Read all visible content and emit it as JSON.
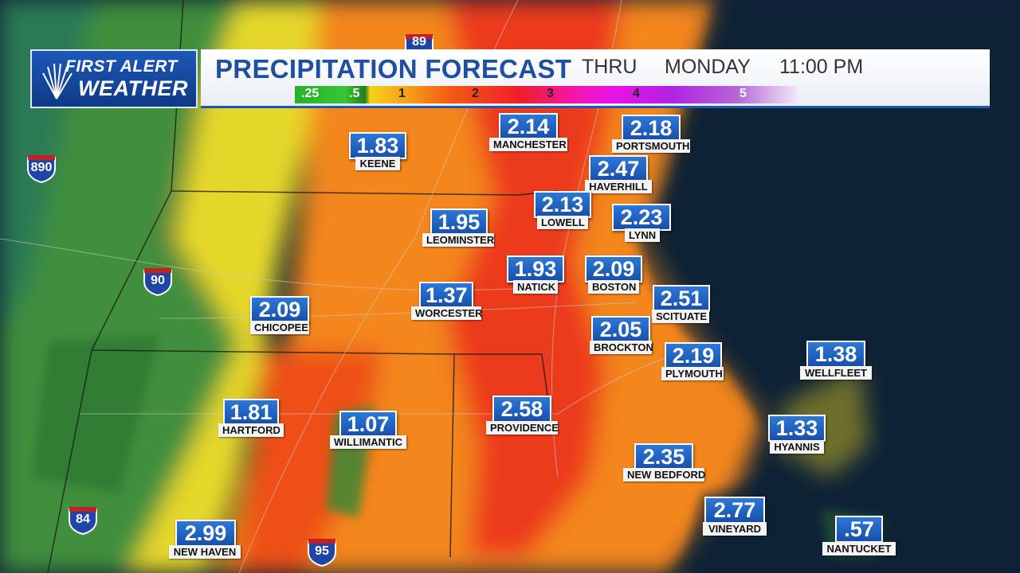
{
  "header": {
    "logo_line1": "FIRST ALERT",
    "logo_line2": "WEATHER",
    "title": "PRECIPITATION FORECAST",
    "thru": "THRU",
    "day": "MONDAY",
    "time": "11:00 PM"
  },
  "scale": {
    "labels": [
      ".25",
      ".5",
      "1",
      "2",
      "3",
      "4",
      "5"
    ]
  },
  "colors": {
    "light_rain": "#3c9a3a",
    "moderate": "#f3d11f",
    "heavy": "#f26a13",
    "very_heavy": "#e9201c",
    "ocean": "#0e2236",
    "header_blue": "#1e4fa3"
  },
  "highways": [
    "890",
    "90",
    "84",
    "95",
    "89"
  ],
  "cities": [
    {
      "name": "KEENE",
      "value": "1.83"
    },
    {
      "name": "MANCHESTER",
      "value": "2.14"
    },
    {
      "name": "PORTSMOUTH",
      "value": "2.18"
    },
    {
      "name": "HAVERHILL",
      "value": "2.47"
    },
    {
      "name": "LOWELL",
      "value": "2.13"
    },
    {
      "name": "LYNN",
      "value": "2.23"
    },
    {
      "name": "LEOMINSTER",
      "value": "1.95"
    },
    {
      "name": "NATICK",
      "value": "1.93"
    },
    {
      "name": "BOSTON",
      "value": "2.09"
    },
    {
      "name": "WORCESTER",
      "value": "1.37"
    },
    {
      "name": "CHICOPEE",
      "value": "2.09"
    },
    {
      "name": "SCITUATE",
      "value": "2.51"
    },
    {
      "name": "BROCKTON",
      "value": "2.05"
    },
    {
      "name": "PLYMOUTH",
      "value": "2.19"
    },
    {
      "name": "WELLFLEET",
      "value": "1.38"
    },
    {
      "name": "HARTFORD",
      "value": "1.81"
    },
    {
      "name": "WILLIMANTIC",
      "value": "1.07"
    },
    {
      "name": "PROVIDENCE",
      "value": "2.58"
    },
    {
      "name": "HYANNIS",
      "value": "1.33"
    },
    {
      "name": "NEW BEDFORD",
      "value": "2.35"
    },
    {
      "name": "VINEYARD",
      "value": "2.77"
    },
    {
      "name": "NEW HAVEN",
      "value": "2.99"
    },
    {
      "name": "NANTUCKET",
      "value": ".57"
    }
  ]
}
